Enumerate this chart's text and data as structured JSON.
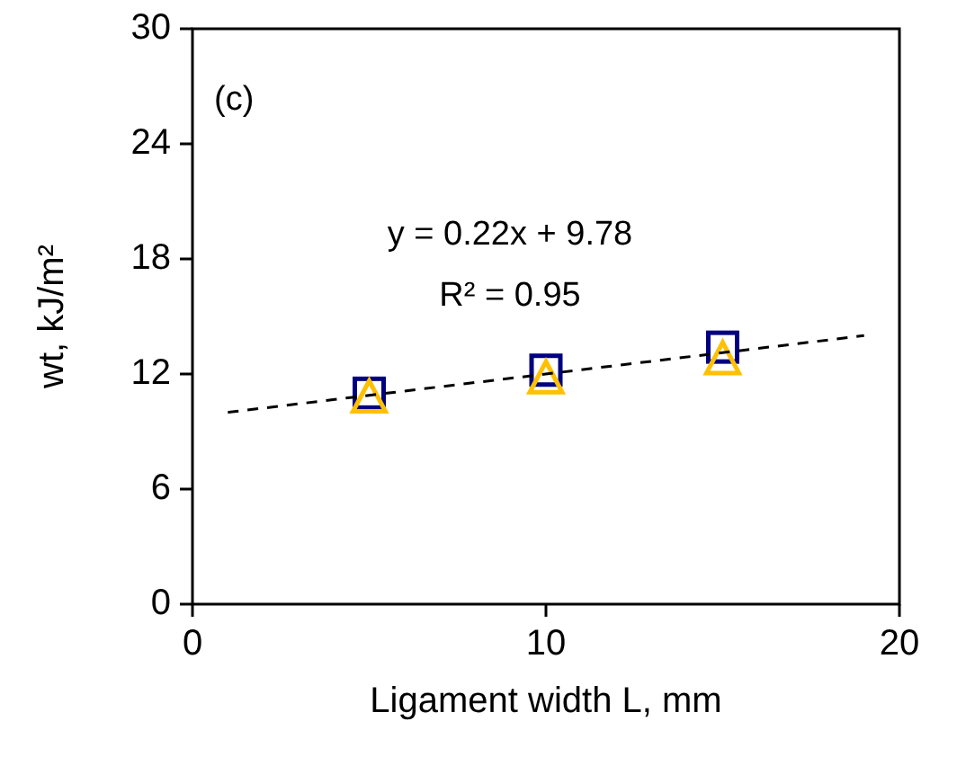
{
  "chart_data": {
    "type": "scatter",
    "xlabel": "Ligament width L, mm",
    "ylabel": "wt,  kJ/m²",
    "xlim": [
      0,
      20
    ],
    "xticks": [
      0,
      10,
      20
    ],
    "ylim": [
      0,
      30
    ],
    "yticks": [
      0,
      6,
      12,
      18,
      24,
      30
    ],
    "grid": false,
    "annotations": [
      "(c)",
      "y = 0.22x + 9.78",
      "R² = 0.95"
    ],
    "series": [
      {
        "marker": "square",
        "color": "#000080",
        "x": [
          5,
          10,
          15
        ],
        "values": [
          11.0,
          12.2,
          13.4
        ]
      },
      {
        "marker": "triangle",
        "color": "#ffc000",
        "x": [
          5,
          10,
          15
        ],
        "values": [
          10.8,
          11.8,
          12.8
        ]
      },
      {
        "type": "line",
        "marker": "none",
        "line_style": "dashed",
        "color": "#000000",
        "x": [
          1,
          19
        ],
        "values": [
          10.0,
          14.0
        ]
      }
    ]
  }
}
